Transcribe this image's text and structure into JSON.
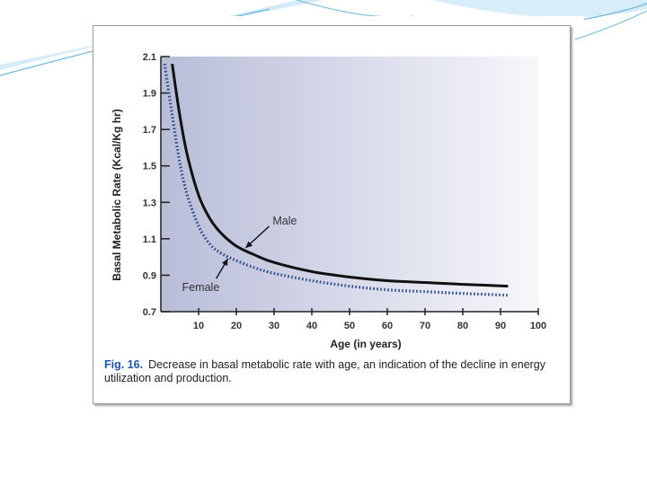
{
  "caption": {
    "label": "Fig. 16.",
    "text": "Decrease in basal metabolic rate with age, an indication of the decline in energy utilization and production."
  },
  "colors": {
    "male": "#111111",
    "female": "#2a4a8a",
    "plot_bg_left": "#b8bdd8",
    "plot_bg_right": "#f7f7fb",
    "caption_label": "#1a56b0"
  },
  "chart_data": {
    "type": "line",
    "title": "",
    "xlabel": "Age (in years)",
    "ylabel": "Basal Metabolic Rate (Kcal/Kg hr)",
    "xlim": [
      0,
      100
    ],
    "ylim": [
      0.7,
      2.1
    ],
    "xticks": [
      10,
      20,
      30,
      40,
      50,
      60,
      70,
      80,
      90,
      100
    ],
    "yticks": [
      0.7,
      0.9,
      1.1,
      1.3,
      1.5,
      1.7,
      1.9,
      2.1
    ],
    "ytick_labels": [
      "0.7",
      "0.9",
      "1.1",
      "1.3",
      "1.5",
      "1.7",
      "1.9",
      "2.1"
    ],
    "grid": false,
    "series": [
      {
        "name": "Male",
        "style": "solid",
        "x": [
          3,
          5,
          7,
          10,
          13,
          16,
          20,
          25,
          30,
          40,
          50,
          60,
          70,
          80,
          92
        ],
        "y": [
          2.06,
          1.78,
          1.56,
          1.34,
          1.21,
          1.13,
          1.06,
          1.01,
          0.97,
          0.92,
          0.89,
          0.87,
          0.86,
          0.85,
          0.84
        ]
      },
      {
        "name": "Female",
        "style": "dotted",
        "x": [
          1,
          3,
          5,
          7,
          10,
          13,
          16,
          20,
          25,
          30,
          40,
          50,
          60,
          70,
          80,
          92
        ],
        "y": [
          2.06,
          1.78,
          1.52,
          1.34,
          1.17,
          1.07,
          1.02,
          0.98,
          0.94,
          0.91,
          0.87,
          0.84,
          0.82,
          0.81,
          0.8,
          0.79
        ]
      }
    ],
    "annotations": [
      {
        "text": "Male",
        "series": "Male",
        "at_x": 22
      },
      {
        "text": "Female",
        "series": "Female",
        "at_x": 18
      }
    ]
  }
}
